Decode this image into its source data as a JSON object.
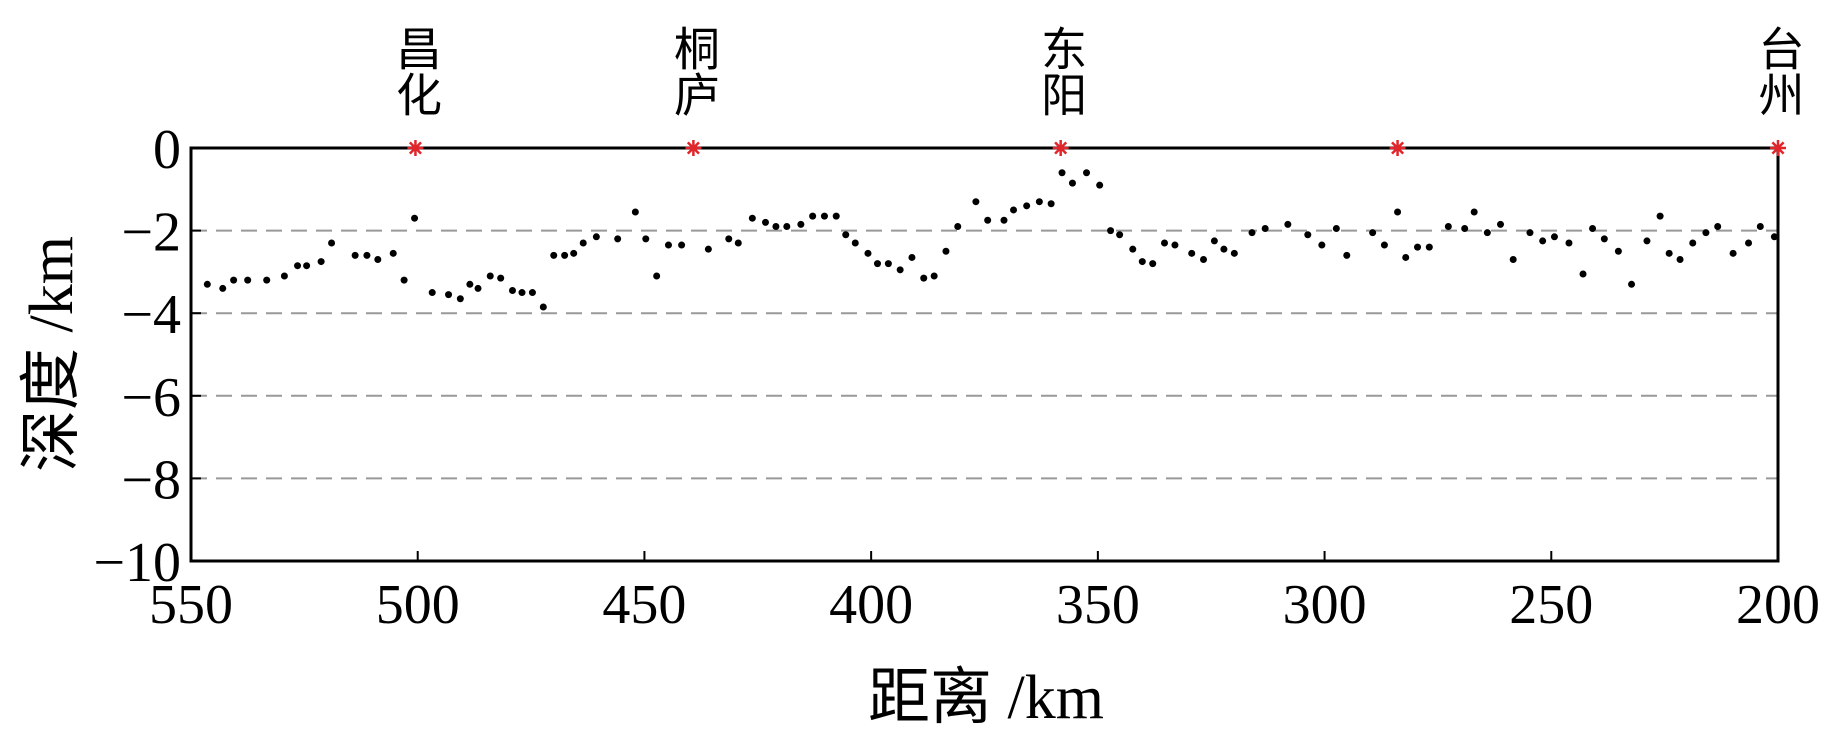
{
  "chart_data": {
    "type": "scatter",
    "xlabel": "距离 /km",
    "ylabel": "深度 /km",
    "xlim": [
      550,
      200
    ],
    "xticks": [
      550,
      500,
      450,
      400,
      350,
      300,
      250,
      200
    ],
    "ylim": [
      -10,
      0
    ],
    "yticks": [
      0,
      {
        "value": -2,
        "label": "−2"
      },
      {
        "value": -4,
        "label": "−4"
      },
      {
        "value": -6,
        "label": "−6"
      },
      {
        "value": -8,
        "label": "−8"
      },
      {
        "value": -10,
        "label": "−10"
      }
    ],
    "grid": true,
    "series": [
      {
        "color": "#000000",
        "x": [
          546.4,
          543,
          540.6,
          537.5,
          533.3,
          529.4,
          526.5,
          524.5,
          521.3,
          519,
          513.8,
          511.2,
          508.8,
          505.4,
          503,
          500.7,
          496.8,
          493.2,
          490.6,
          488.5,
          486.7,
          484,
          481.7,
          479.1,
          477,
          474.7,
          472.3,
          470,
          467.6,
          465.6,
          463.5,
          460.6,
          455.9,
          452,
          449.7,
          447.3,
          444.7,
          441.8,
          435.9,
          431.4,
          429.3,
          426.2,
          423.3,
          421,
          418.6,
          415.5,
          412.9,
          410.3,
          407.7,
          405.6,
          403.5,
          400.7,
          398.6,
          396.2,
          393.6,
          391,
          388.4,
          386.1,
          383.5,
          380.9,
          376.9,
          374.3,
          370.7,
          368.6,
          365.7,
          362.9,
          360.3,
          357.9,
          355.6,
          352.5,
          349.6,
          347.2,
          345.2,
          342.3,
          340.2,
          337.9,
          335.3,
          333,
          329.3,
          326.7,
          324.3,
          322.2,
          319.9,
          316,
          313.1,
          308.1,
          303.7,
          300.6,
          297.4,
          295.1,
          289.4,
          286.8,
          283.9,
          282.1,
          279.5,
          276.9,
          272.7,
          269.1,
          267,
          264.1,
          261.2,
          258.4,
          254.7,
          251.9,
          249.3,
          246.1,
          243,
          240.9,
          238.3,
          235.2,
          232.3,
          228.9,
          226,
          224,
          221.6,
          218.8,
          215.9,
          213.3,
          209.9,
          206.5,
          203.9,
          200.8
        ],
        "values": [
          -3.3,
          -3.4,
          -3.2,
          -3.2,
          -3.2,
          -3.1,
          -2.85,
          -2.85,
          -2.75,
          -2.3,
          -2.6,
          -2.6,
          -2.7,
          -2.55,
          -3.2,
          -1.7,
          -3.5,
          -3.55,
          -3.65,
          -3.3,
          -3.4,
          -3.1,
          -3.15,
          -3.45,
          -3.5,
          -3.5,
          -3.85,
          -2.6,
          -2.6,
          -2.55,
          -2.3,
          -2.15,
          -2.2,
          -1.55,
          -2.2,
          -3.1,
          -2.35,
          -2.35,
          -2.45,
          -2.2,
          -2.3,
          -1.7,
          -1.8,
          -1.9,
          -1.9,
          -1.85,
          -1.65,
          -1.65,
          -1.65,
          -2.1,
          -2.3,
          -2.55,
          -2.8,
          -2.8,
          -2.95,
          -2.65,
          -3.15,
          -3.1,
          -2.5,
          -1.9,
          -1.3,
          -1.75,
          -1.75,
          -1.5,
          -1.4,
          -1.3,
          -1.35,
          -0.6,
          -0.85,
          -0.6,
          -0.9,
          -2,
          -2.1,
          -2.45,
          -2.75,
          -2.8,
          -2.3,
          -2.35,
          -2.55,
          -2.7,
          -2.25,
          -2.45,
          -2.55,
          -2.05,
          -1.95,
          -1.85,
          -2.1,
          -2.35,
          -1.95,
          -2.6,
          -2.05,
          -2.35,
          -1.55,
          -2.65,
          -2.4,
          -2.4,
          -1.9,
          -1.95,
          -1.55,
          -2.05,
          -1.85,
          -2.7,
          -2.05,
          -2.25,
          -2.15,
          -2.3,
          -3.05,
          -1.95,
          -2.2,
          -2.5,
          -3.3,
          -2.25,
          -1.65,
          -2.55,
          -2.7,
          -2.3,
          -2.05,
          -1.9,
          -2.55,
          -2.3,
          -1.9,
          -2.15
        ]
      }
    ],
    "stations": {
      "color": "#e0262b",
      "x": [
        500.5,
        439.2,
        358.2,
        283.9,
        200
      ],
      "depth": [
        0,
        0,
        0,
        0,
        0
      ],
      "labels": [
        "昌化",
        "桐庐",
        "东阳",
        null,
        "台州"
      ]
    }
  }
}
